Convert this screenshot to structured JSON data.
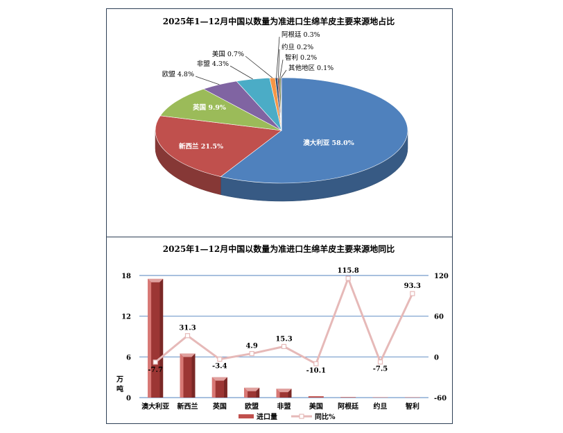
{
  "chart_data": [
    {
      "type": "pie",
      "title": "2025年1—12月中国以数量为准进口生绵羊皮主要来源地占比",
      "slices": [
        {
          "label": "澳大利亚",
          "value": 58.0,
          "display": "澳大利亚 58.0%",
          "color": "#4f81bd"
        },
        {
          "label": "新西兰",
          "value": 21.5,
          "display": "新西兰 21.5%",
          "color": "#c0504d"
        },
        {
          "label": "英国",
          "value": 9.9,
          "display": "英国 9.9%",
          "color": "#9bbb59"
        },
        {
          "label": "欧盟",
          "value": 4.8,
          "display": "欧盟 4.8%",
          "color": "#8064a2"
        },
        {
          "label": "非盟",
          "value": 4.3,
          "display": "非盟 4.3%",
          "color": "#4bacc6"
        },
        {
          "label": "美国",
          "value": 0.7,
          "display": "美国 0.7%",
          "color": "#f79646"
        },
        {
          "label": "阿根廷",
          "value": 0.3,
          "display": "阿根廷 0.3%",
          "color": "#2c4d75"
        },
        {
          "label": "约旦",
          "value": 0.2,
          "display": "约旦 0.2%",
          "color": "#772c2a"
        },
        {
          "label": "智利",
          "value": 0.2,
          "display": "智利 0.2%",
          "color": "#5f7530"
        },
        {
          "label": "其他地区",
          "value": 0.1,
          "display": "其他地区 0.1%",
          "color": "#4d3b62"
        }
      ]
    },
    {
      "type": "bar",
      "title": "2025年1—12月中国以数量为准进口生绵羊皮主要来源地同比",
      "categories": [
        "澳大利亚",
        "新西兰",
        "英国",
        "欧盟",
        "非盟",
        "美国",
        "阿根廷",
        "约旦",
        "智利"
      ],
      "ylabel": "万吨",
      "ylim": [
        0,
        18
      ],
      "y_ticks": [
        "0",
        "6",
        "12",
        "18"
      ],
      "y2lim": [
        -60,
        120
      ],
      "y2_ticks": [
        "-60",
        "0",
        "60",
        "120"
      ],
      "series": [
        {
          "name": "进口量",
          "kind": "bar",
          "color": "#c0504d",
          "values": [
            17.5,
            6.5,
            3.0,
            1.45,
            1.3,
            0.2,
            0.08,
            0.05,
            0.05
          ]
        },
        {
          "name": "同比%",
          "kind": "line",
          "axis": "right",
          "color": "#e6b9b8",
          "values": [
            -7.7,
            31.3,
            -3.4,
            4.9,
            15.3,
            -10.1,
            115.8,
            -7.5,
            93.3
          ],
          "labels": [
            "-7.7",
            "31.3",
            "-3.4",
            "4.9",
            "15.3",
            "-10.1",
            "115.8",
            "-7.5",
            "93.3"
          ]
        }
      ],
      "grid": true,
      "legend": "bottom"
    }
  ]
}
